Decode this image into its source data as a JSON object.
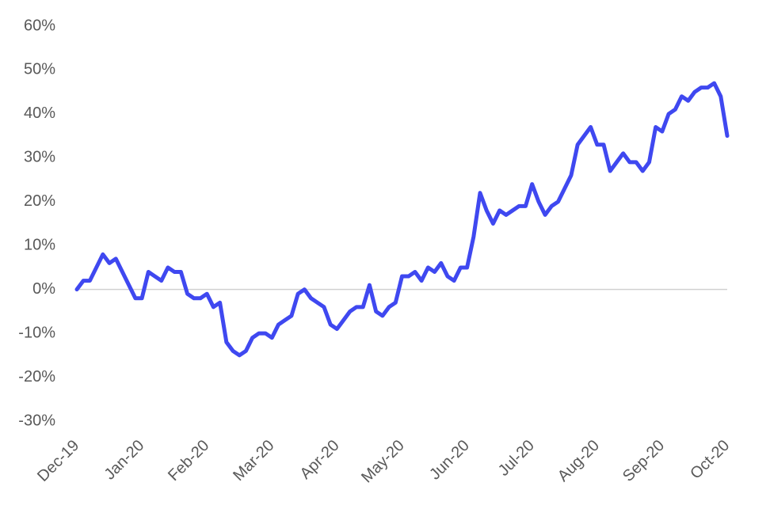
{
  "chart_data": {
    "type": "line",
    "categories": [
      "Dec-19",
      null,
      null,
      null,
      null,
      null,
      null,
      null,
      null,
      null,
      "Jan-20",
      null,
      null,
      null,
      null,
      null,
      null,
      null,
      null,
      null,
      "Feb-20",
      null,
      null,
      null,
      null,
      null,
      null,
      null,
      null,
      null,
      "Mar-20",
      null,
      null,
      null,
      null,
      null,
      null,
      null,
      null,
      null,
      "Apr-20",
      null,
      null,
      null,
      null,
      null,
      null,
      null,
      null,
      null,
      "May-20",
      null,
      null,
      null,
      null,
      null,
      null,
      null,
      null,
      null,
      "Jun-20",
      null,
      null,
      null,
      null,
      null,
      null,
      null,
      null,
      null,
      "Jul-20",
      null,
      null,
      null,
      null,
      null,
      null,
      null,
      null,
      null,
      "Aug-20",
      null,
      null,
      null,
      null,
      null,
      null,
      null,
      null,
      null,
      "Sep-20",
      null,
      null,
      null,
      null,
      null,
      null,
      null,
      null,
      null,
      "Oct-20"
    ],
    "series": [
      {
        "color": "#3f48f0",
        "values": [
          0,
          2,
          2,
          5,
          8,
          6,
          7,
          4,
          1,
          -2,
          -2,
          4,
          3,
          2,
          5,
          4,
          4,
          -1,
          -2,
          -2,
          -1,
          -4,
          -3,
          -12,
          -14,
          -15,
          -14,
          -11,
          -10,
          -10,
          -11,
          -8,
          -7,
          -6,
          -1,
          0,
          -2,
          -3,
          -4,
          -8,
          -9,
          -7,
          -5,
          -4,
          -4,
          1,
          -5,
          -6,
          -4,
          -3,
          3,
          3,
          4,
          2,
          5,
          4,
          6,
          3,
          2,
          5,
          5,
          12,
          22,
          18,
          15,
          18,
          17,
          18,
          19,
          19,
          24,
          20,
          17,
          19,
          20,
          23,
          26,
          33,
          35,
          37,
          33,
          33,
          27,
          29,
          31,
          29,
          29,
          27,
          29,
          37,
          36,
          40,
          41,
          44,
          43,
          45,
          46,
          46,
          47,
          44,
          35
        ]
      }
    ],
    "ylim": [
      -30,
      60
    ],
    "yticks": [
      {
        "value": -30,
        "label": "-30%"
      },
      {
        "value": -20,
        "label": "-20%"
      },
      {
        "value": -10,
        "label": "-10%"
      },
      {
        "value": 0,
        "label": "0%"
      },
      {
        "value": 10,
        "label": "10%"
      },
      {
        "value": 20,
        "label": "20%"
      },
      {
        "value": 30,
        "label": "30%"
      },
      {
        "value": 40,
        "label": "40%"
      },
      {
        "value": 50,
        "label": "50%"
      },
      {
        "value": 60,
        "label": "60%"
      }
    ]
  }
}
